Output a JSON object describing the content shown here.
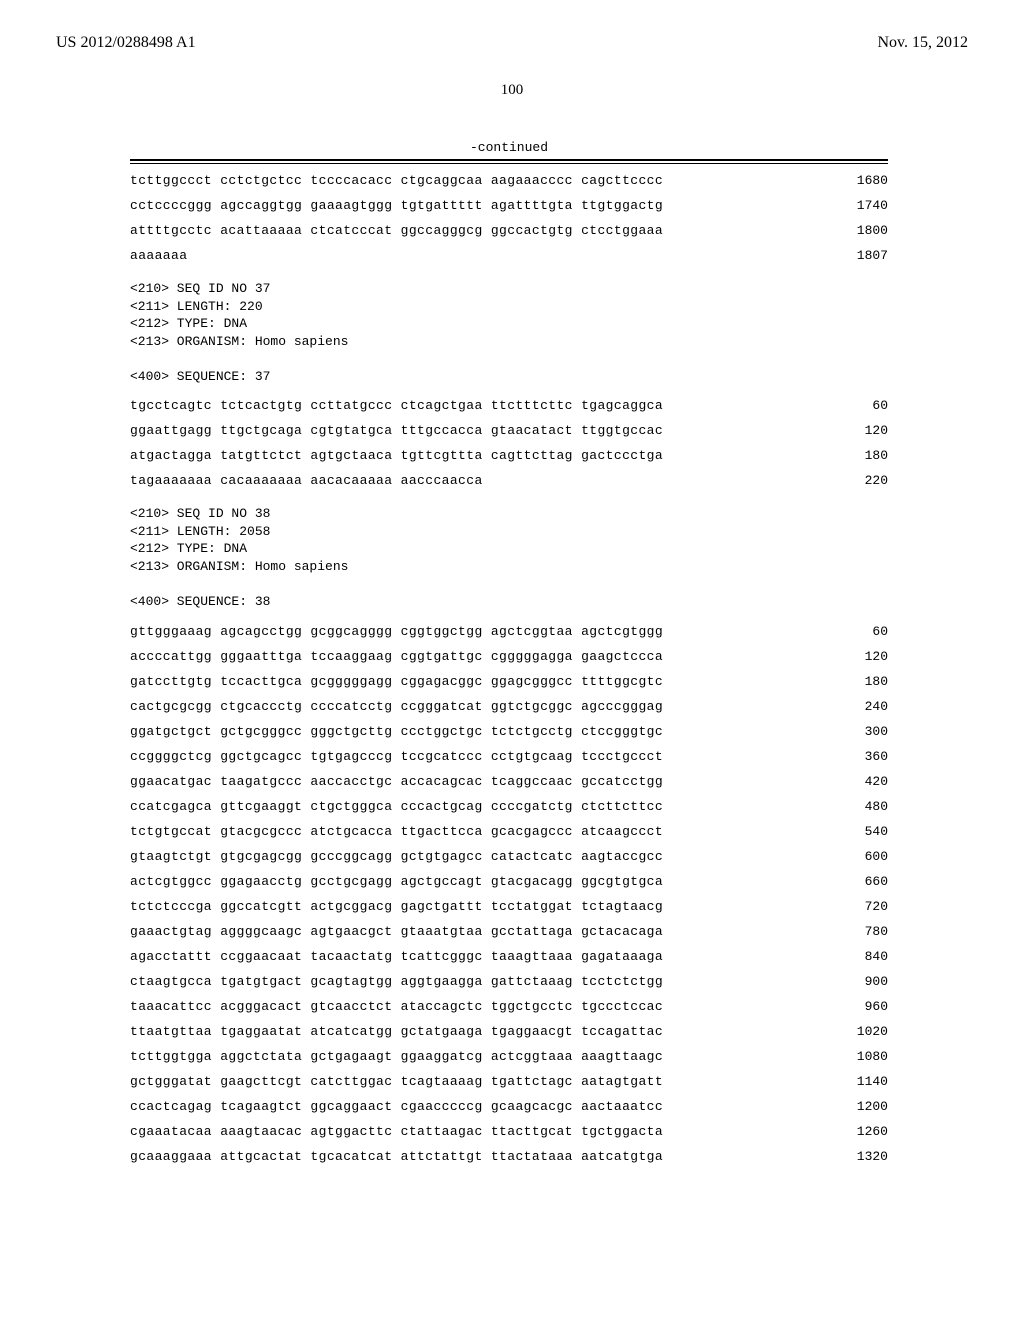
{
  "header": {
    "left": "US 2012/0288498 A1",
    "right": "Nov. 15, 2012"
  },
  "page_number": "100",
  "continued_label": "-continued",
  "block1": {
    "lines": [
      {
        "seq": "tcttggccct cctctgctcc tccccacacc ctgcaggcaa aagaaacccc cagcttcccc",
        "n": "1680"
      },
      {
        "seq": "cctccccggg agccaggtgg gaaaagtggg tgtgattttt agattttgta ttgtggactg",
        "n": "1740"
      },
      {
        "seq": "attttgcctc acattaaaaa ctcatcccat ggccagggcg ggccactgtg ctcctggaaa",
        "n": "1800"
      },
      {
        "seq": "aaaaaaa",
        "n": "1807"
      }
    ]
  },
  "seq37": {
    "header": "<210> SEQ ID NO 37\n<211> LENGTH: 220\n<212> TYPE: DNA\n<213> ORGANISM: Homo sapiens\n\n<400> SEQUENCE: 37",
    "lines": [
      {
        "seq": "tgcctcagtc tctcactgtg ccttatgccc ctcagctgaa ttctttcttc tgagcaggca",
        "n": "60"
      },
      {
        "seq": "ggaattgagg ttgctgcaga cgtgtatgca tttgccacca gtaacatact ttggtgccac",
        "n": "120"
      },
      {
        "seq": "atgactagga tatgttctct agtgctaaca tgttcgttta cagttcttag gactccctga",
        "n": "180"
      },
      {
        "seq": "tagaaaaaaa cacaaaaaaa aacacaaaaa aacccaacca",
        "n": "220"
      }
    ]
  },
  "seq38": {
    "header": "<210> SEQ ID NO 38\n<211> LENGTH: 2058\n<212> TYPE: DNA\n<213> ORGANISM: Homo sapiens\n\n<400> SEQUENCE: 38",
    "lines": [
      {
        "seq": "gttgggaaag agcagcctgg gcggcagggg cggtggctgg agctcggtaa agctcgtggg",
        "n": "60"
      },
      {
        "seq": "accccattgg gggaatttga tccaaggaag cggtgattgc cgggggagga gaagctccca",
        "n": "120"
      },
      {
        "seq": "gatccttgtg tccacttgca gcgggggagg cggagacggc ggagcgggcc ttttggcgtc",
        "n": "180"
      },
      {
        "seq": "cactgcgcgg ctgcaccctg ccccatcctg ccgggatcat ggtctgcggc agcccgggag",
        "n": "240"
      },
      {
        "seq": "ggatgctgct gctgcgggcc gggctgcttg ccctggctgc tctctgcctg ctccgggtgc",
        "n": "300"
      },
      {
        "seq": "ccggggctcg ggctgcagcc tgtgagcccg tccgcatccc cctgtgcaag tccctgccct",
        "n": "360"
      },
      {
        "seq": "ggaacatgac taagatgccc aaccacctgc accacagcac tcaggccaac gccatcctgg",
        "n": "420"
      },
      {
        "seq": "ccatcgagca gttcgaaggt ctgctgggca cccactgcag ccccgatctg ctcttcttcc",
        "n": "480"
      },
      {
        "seq": "tctgtgccat gtacgcgccc atctgcacca ttgacttcca gcacgagccc atcaagccct",
        "n": "540"
      },
      {
        "seq": "gtaagtctgt gtgcgagcgg gcccggcagg gctgtgagcc catactcatc aagtaccgcc",
        "n": "600"
      },
      {
        "seq": "actcgtggcc ggagaacctg gcctgcgagg agctgccagt gtacgacagg ggcgtgtgca",
        "n": "660"
      },
      {
        "seq": "tctctcccga ggccatcgtt actgcggacg gagctgattt tcctatggat tctagtaacg",
        "n": "720"
      },
      {
        "seq": "gaaactgtag aggggcaagc agtgaacgct gtaaatgtaa gcctattaga gctacacaga",
        "n": "780"
      },
      {
        "seq": "agacctattt ccggaacaat tacaactatg tcattcgggc taaagttaaa gagataaaga",
        "n": "840"
      },
      {
        "seq": "ctaagtgcca tgatgtgact gcagtagtgg aggtgaagga gattctaaag tcctctctgg",
        "n": "900"
      },
      {
        "seq": "taaacattcc acgggacact gtcaacctct ataccagctc tggctgcctc tgccctccac",
        "n": "960"
      },
      {
        "seq": "ttaatgttaa tgaggaatat atcatcatgg gctatgaaga tgaggaacgt tccagattac",
        "n": "1020"
      },
      {
        "seq": "tcttggtgga aggctctata gctgagaagt ggaaggatcg actcggtaaa aaagttaagc",
        "n": "1080"
      },
      {
        "seq": "gctgggatat gaagcttcgt catcttggac tcagtaaaag tgattctagc aatagtgatt",
        "n": "1140"
      },
      {
        "seq": "ccactcagag tcagaagtct ggcaggaact cgaacccccg gcaagcacgc aactaaatcc",
        "n": "1200"
      },
      {
        "seq": "cgaaatacaa aaagtaacac agtggacttc ctattaagac ttacttgcat tgctggacta",
        "n": "1260"
      },
      {
        "seq": "gcaaaggaaa attgcactat tgcacatcat attctattgt ttactataaa aatcatgtga",
        "n": "1320"
      }
    ]
  }
}
